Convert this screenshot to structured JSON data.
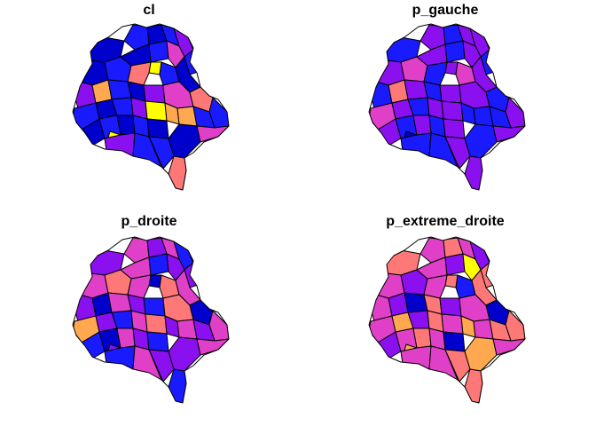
{
  "panels": [
    {
      "title": "cl"
    },
    {
      "title": "p_gauche"
    },
    {
      "title": "p_droite"
    },
    {
      "title": "p_extreme_droite"
    }
  ],
  "palette": [
    "#0000CD",
    "#1A1AFF",
    "#8A10F0",
    "#E040C8",
    "#FF7878",
    "#FFA850",
    "#FFFF00"
  ],
  "panel_colors": [
    [
      0,
      1,
      0,
      1,
      2,
      1,
      0,
      1,
      0,
      1,
      3,
      6,
      4,
      1,
      0,
      2,
      5,
      1,
      0,
      2,
      6,
      3,
      4,
      1,
      1,
      0,
      1,
      2,
      6,
      5,
      5,
      1,
      0,
      1,
      6,
      0,
      1,
      0,
      2,
      1,
      1,
      0,
      3,
      4
    ],
    [
      1,
      2,
      1,
      2,
      2,
      1,
      2,
      3,
      2,
      1,
      2,
      2,
      1,
      3,
      2,
      1,
      4,
      2,
      1,
      2,
      6,
      2,
      1,
      2,
      3,
      2,
      1,
      2,
      2,
      1,
      1,
      1,
      2,
      1,
      0,
      2,
      1,
      2,
      1,
      1,
      2,
      1,
      2,
      2
    ],
    [
      2,
      3,
      2,
      3,
      1,
      2,
      3,
      4,
      3,
      1,
      2,
      0,
      3,
      4,
      3,
      2,
      0,
      3,
      2,
      1,
      6,
      4,
      0,
      3,
      5,
      2,
      1,
      3,
      4,
      2,
      3,
      2,
      1,
      0,
      2,
      3,
      2,
      1,
      1,
      3,
      2,
      2,
      3,
      1
    ],
    [
      4,
      3,
      4,
      3,
      2,
      4,
      3,
      2,
      3,
      2,
      6,
      4,
      3,
      1,
      4,
      3,
      2,
      0,
      4,
      2,
      6,
      3,
      0,
      4,
      3,
      5,
      2,
      4,
      3,
      5,
      3,
      4,
      2,
      3,
      5,
      4,
      3,
      0,
      3,
      3,
      4,
      5,
      3,
      4
    ]
  ]
}
